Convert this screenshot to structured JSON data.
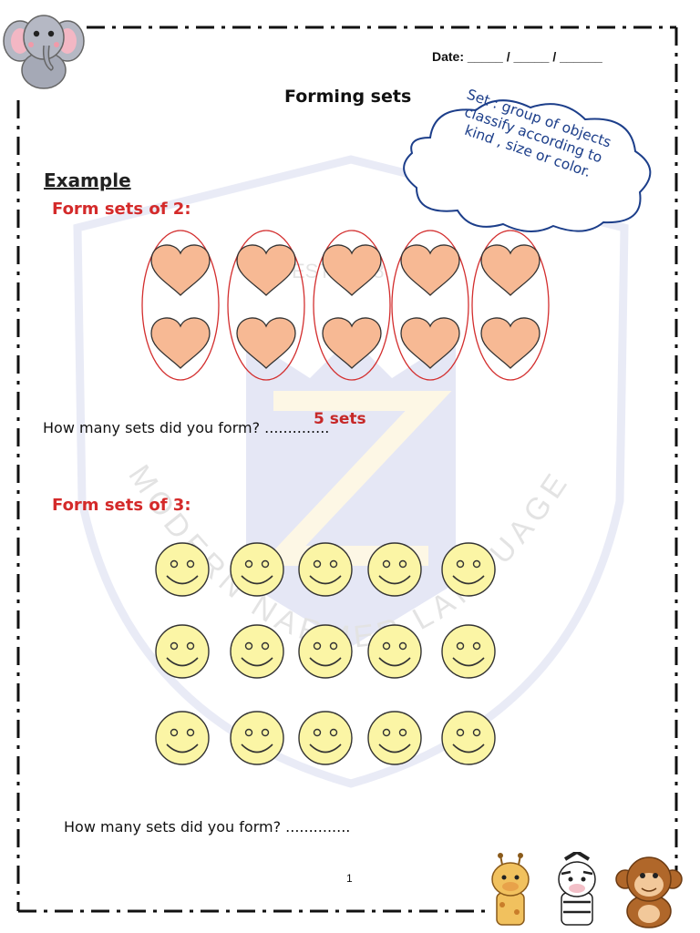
{
  "header": {
    "date_label": "Date:  _____ / _____ / ______"
  },
  "title": "Forming sets",
  "definition_cloud": {
    "lines": [
      "Set : group of objects",
      "classify according to",
      "kind , size or color."
    ]
  },
  "example_heading": "Example",
  "section1": {
    "heading": "Form sets of 2:",
    "question": "How many sets did you form? ..............",
    "answer": "5 sets",
    "object_icon": "heart-icon",
    "object_color": "#f7b994",
    "group_outline_color": "#d32f2f",
    "columns": 5,
    "rows": 2
  },
  "section2": {
    "heading": "Form sets of 3:",
    "question": "How many sets did you form? ..............",
    "object_icon": "smiley-face-icon",
    "object_color": "#fbf5a5",
    "rows": 3,
    "columns": 5
  },
  "page_number": "1",
  "watermark": {
    "text_top": "EST. 1998",
    "text_arc": "MODERN NARMER LANGUAGE SCHOOL"
  },
  "decorations": [
    "elephant-icon",
    "giraffe-icon",
    "zebra-icon",
    "monkey-icon"
  ]
}
